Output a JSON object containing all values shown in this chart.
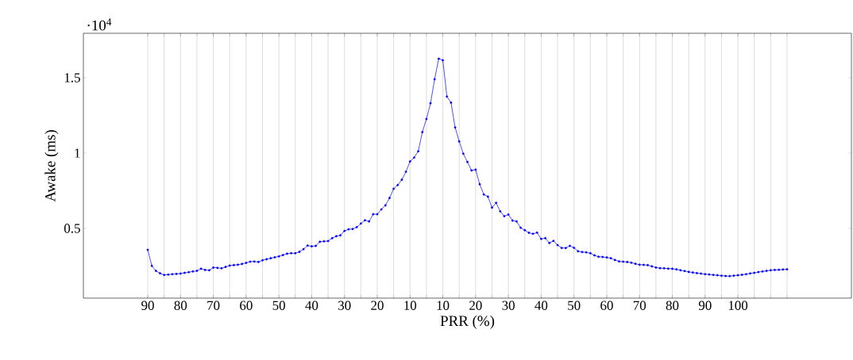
{
  "chart_data": {
    "type": "line",
    "xlabel": "PRR (%)",
    "ylabel": "Awake (ms)",
    "annotations": [
      "·10$^{4}$"
    ],
    "categories": [
      "90",
      null,
      null,
      null,
      null,
      null,
      null,
      null,
      "80",
      null,
      null,
      null,
      null,
      null,
      null,
      null,
      "70",
      null,
      null,
      null,
      null,
      null,
      null,
      null,
      "60",
      null,
      null,
      null,
      null,
      null,
      null,
      null,
      "50",
      null,
      null,
      null,
      null,
      null,
      null,
      null,
      "40",
      null,
      null,
      null,
      null,
      null,
      null,
      null,
      "30",
      null,
      null,
      null,
      null,
      null,
      null,
      null,
      "20",
      null,
      null,
      null,
      null,
      null,
      null,
      null,
      "10",
      null,
      null,
      null,
      null,
      null,
      null,
      null,
      "10",
      null,
      null,
      null,
      null,
      null,
      null,
      null,
      "20",
      null,
      null,
      null,
      null,
      null,
      null,
      null,
      "30",
      null,
      null,
      null,
      null,
      null,
      null,
      null,
      "40",
      null,
      null,
      null,
      null,
      null,
      null,
      null,
      "50",
      null,
      null,
      null,
      null,
      null,
      null,
      null,
      "60",
      null,
      null,
      null,
      null,
      null,
      null,
      null,
      "70",
      null,
      null,
      null,
      null,
      null,
      null,
      null,
      "80",
      null,
      null,
      null,
      null,
      null,
      null,
      null,
      "90",
      null,
      null,
      null,
      null,
      null,
      null,
      null,
      "100",
      null,
      null,
      null,
      null,
      null,
      null,
      null,
      null,
      null,
      null,
      null,
      null
    ],
    "series": [
      {
        "color": "#0000ff",
        "values": [
          0.358,
          0.251,
          0.218,
          0.202,
          0.191,
          0.193,
          0.196,
          0.198,
          0.2,
          0.205,
          0.209,
          0.214,
          0.218,
          0.232,
          0.224,
          0.222,
          0.24,
          0.238,
          0.235,
          0.244,
          0.253,
          0.256,
          0.259,
          0.264,
          0.271,
          0.279,
          0.28,
          0.277,
          0.288,
          0.295,
          0.302,
          0.308,
          0.314,
          0.323,
          0.332,
          0.335,
          0.335,
          0.344,
          0.362,
          0.386,
          0.381,
          0.384,
          0.411,
          0.414,
          0.416,
          0.435,
          0.448,
          0.454,
          0.483,
          0.494,
          0.496,
          0.508,
          0.532,
          0.554,
          0.546,
          0.594,
          0.594,
          0.626,
          0.653,
          0.702,
          0.763,
          0.788,
          0.823,
          0.876,
          0.944,
          0.97,
          1.012,
          1.139,
          1.226,
          1.331,
          1.49,
          1.626,
          1.616,
          1.375,
          1.335,
          1.17,
          1.077,
          0.996,
          0.941,
          0.885,
          0.89,
          0.793,
          0.725,
          0.711,
          0.638,
          0.67,
          0.613,
          0.581,
          0.592,
          0.552,
          0.546,
          0.504,
          0.488,
          0.471,
          0.464,
          0.472,
          0.43,
          0.435,
          0.403,
          0.417,
          0.389,
          0.37,
          0.37,
          0.384,
          0.371,
          0.348,
          0.343,
          0.341,
          0.335,
          0.321,
          0.312,
          0.31,
          0.307,
          0.302,
          0.29,
          0.281,
          0.279,
          0.277,
          0.272,
          0.265,
          0.259,
          0.258,
          0.256,
          0.248,
          0.24,
          0.236,
          0.235,
          0.233,
          0.232,
          0.228,
          0.222,
          0.217,
          0.211,
          0.207,
          0.203,
          0.2,
          0.196,
          0.194,
          0.191,
          0.189,
          0.186,
          0.184,
          0.183,
          0.186,
          0.189,
          0.192,
          0.196,
          0.201,
          0.205,
          0.21,
          0.214,
          0.218,
          0.222,
          0.224,
          0.225,
          0.227,
          0.228
        ]
      }
    ],
    "marker": "circle",
    "grid": "x",
    "ylim": [
      0.037,
      1.795
    ],
    "yticks": [
      0.5,
      1,
      1.5
    ]
  }
}
